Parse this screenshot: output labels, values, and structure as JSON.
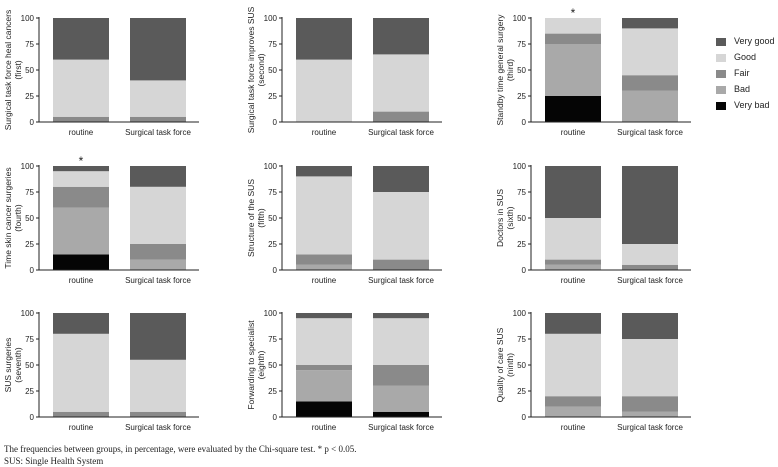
{
  "legend": [
    {
      "label": "Very good",
      "color": "#5a5a5a"
    },
    {
      "label": "Good",
      "color": "#d6d6d6"
    },
    {
      "label": "Fair",
      "color": "#8a8a8a"
    },
    {
      "label": "Bad",
      "color": "#a9a9a9"
    },
    {
      "label": "Very bad",
      "color": "#050505"
    }
  ],
  "caption": {
    "line1": "The frequencies between groups, in percentage, were evaluated by the Chi-square test. * p < 0.05.",
    "line2": "SUS: Single Health System"
  },
  "chart_data": [
    {
      "type": "bar",
      "stacked": true,
      "ylabel": "Surgical task force heal cancers (first)",
      "categories": [
        "routine",
        "Surgical task force"
      ],
      "ylim": [
        0,
        100
      ],
      "yticks": [
        0,
        25,
        50,
        75,
        100
      ],
      "annotations": [],
      "series": [
        {
          "name": "Very bad",
          "values": [
            0,
            0
          ]
        },
        {
          "name": "Bad",
          "values": [
            0,
            0
          ]
        },
        {
          "name": "Fair",
          "values": [
            5,
            5
          ]
        },
        {
          "name": "Good",
          "values": [
            55,
            35
          ]
        },
        {
          "name": "Very good",
          "values": [
            40,
            60
          ]
        }
      ]
    },
    {
      "type": "bar",
      "stacked": true,
      "ylabel": "Surgical task force improves SUS (second)",
      "categories": [
        "routine",
        "Surgical task force"
      ],
      "ylim": [
        0,
        100
      ],
      "yticks": [
        0,
        25,
        50,
        75,
        100
      ],
      "annotations": [],
      "series": [
        {
          "name": "Very bad",
          "values": [
            0,
            0
          ]
        },
        {
          "name": "Bad",
          "values": [
            0,
            0
          ]
        },
        {
          "name": "Fair",
          "values": [
            0,
            10
          ]
        },
        {
          "name": "Good",
          "values": [
            60,
            55
          ]
        },
        {
          "name": "Very good",
          "values": [
            40,
            35
          ]
        }
      ]
    },
    {
      "type": "bar",
      "stacked": true,
      "ylabel": "Standby time general surgery (third)",
      "categories": [
        "routine",
        "Surgical task force"
      ],
      "ylim": [
        0,
        100
      ],
      "yticks": [
        0,
        25,
        50,
        75,
        100
      ],
      "annotations": [
        {
          "category": "routine",
          "text": "*"
        }
      ],
      "series": [
        {
          "name": "Very bad",
          "values": [
            25,
            0
          ]
        },
        {
          "name": "Bad",
          "values": [
            50,
            30
          ]
        },
        {
          "name": "Fair",
          "values": [
            10,
            15
          ]
        },
        {
          "name": "Good",
          "values": [
            15,
            45
          ]
        },
        {
          "name": "Very good",
          "values": [
            0,
            10
          ]
        }
      ]
    },
    {
      "type": "bar",
      "stacked": true,
      "ylabel": "Time skin cancer surgeries (fourth)",
      "categories": [
        "routine",
        "Surgical task force"
      ],
      "ylim": [
        0,
        100
      ],
      "yticks": [
        0,
        25,
        50,
        75,
        100
      ],
      "annotations": [
        {
          "category": "routine",
          "text": "*"
        }
      ],
      "series": [
        {
          "name": "Very bad",
          "values": [
            15,
            0
          ]
        },
        {
          "name": "Bad",
          "values": [
            45,
            10
          ]
        },
        {
          "name": "Fair",
          "values": [
            20,
            15
          ]
        },
        {
          "name": "Good",
          "values": [
            15,
            55
          ]
        },
        {
          "name": "Very good",
          "values": [
            5,
            20
          ]
        }
      ]
    },
    {
      "type": "bar",
      "stacked": true,
      "ylabel": "Structure of the SUS (fifth)",
      "categories": [
        "routine",
        "Surgical task force"
      ],
      "ylim": [
        0,
        100
      ],
      "yticks": [
        0,
        25,
        50,
        75,
        100
      ],
      "annotations": [],
      "series": [
        {
          "name": "Very bad",
          "values": [
            0,
            0
          ]
        },
        {
          "name": "Bad",
          "values": [
            5,
            0
          ]
        },
        {
          "name": "Fair",
          "values": [
            10,
            10
          ]
        },
        {
          "name": "Good",
          "values": [
            75,
            65
          ]
        },
        {
          "name": "Very good",
          "values": [
            10,
            25
          ]
        }
      ]
    },
    {
      "type": "bar",
      "stacked": true,
      "ylabel": "Doctors in SUS (sixth)",
      "categories": [
        "routine",
        "Surgical task force"
      ],
      "ylim": [
        0,
        100
      ],
      "yticks": [
        0,
        25,
        50,
        75,
        100
      ],
      "annotations": [],
      "series": [
        {
          "name": "Very bad",
          "values": [
            0,
            0
          ]
        },
        {
          "name": "Bad",
          "values": [
            5,
            0
          ]
        },
        {
          "name": "Fair",
          "values": [
            5,
            5
          ]
        },
        {
          "name": "Good",
          "values": [
            40,
            20
          ]
        },
        {
          "name": "Very good",
          "values": [
            50,
            75
          ]
        }
      ]
    },
    {
      "type": "bar",
      "stacked": true,
      "ylabel": "SUS surgeries (seventh)",
      "categories": [
        "routine",
        "Surgical task force"
      ],
      "ylim": [
        0,
        100
      ],
      "yticks": [
        0,
        25,
        50,
        75,
        100
      ],
      "annotations": [],
      "series": [
        {
          "name": "Very bad",
          "values": [
            0,
            0
          ]
        },
        {
          "name": "Bad",
          "values": [
            0,
            0
          ]
        },
        {
          "name": "Fair",
          "values": [
            5,
            5
          ]
        },
        {
          "name": "Good",
          "values": [
            75,
            50
          ]
        },
        {
          "name": "Very good",
          "values": [
            20,
            45
          ]
        }
      ]
    },
    {
      "type": "bar",
      "stacked": true,
      "ylabel": "Forwarding to specialist (eighth)",
      "categories": [
        "routine",
        "Surgical task force"
      ],
      "ylim": [
        0,
        100
      ],
      "yticks": [
        0,
        25,
        50,
        75,
        100
      ],
      "annotations": [],
      "series": [
        {
          "name": "Very bad",
          "values": [
            15,
            5
          ]
        },
        {
          "name": "Bad",
          "values": [
            30,
            25
          ]
        },
        {
          "name": "Fair",
          "values": [
            5,
            20
          ]
        },
        {
          "name": "Good",
          "values": [
            45,
            45
          ]
        },
        {
          "name": "Very good",
          "values": [
            5,
            5
          ]
        }
      ]
    },
    {
      "type": "bar",
      "stacked": true,
      "ylabel": "Quality of care SUS (ninth)",
      "categories": [
        "routine",
        "Surgical task force"
      ],
      "ylim": [
        0,
        100
      ],
      "yticks": [
        0,
        25,
        50,
        75,
        100
      ],
      "annotations": [],
      "series": [
        {
          "name": "Very bad",
          "values": [
            0,
            0
          ]
        },
        {
          "name": "Bad",
          "values": [
            10,
            5
          ]
        },
        {
          "name": "Fair",
          "values": [
            10,
            15
          ]
        },
        {
          "name": "Good",
          "values": [
            60,
            55
          ]
        },
        {
          "name": "Very good",
          "values": [
            20,
            25
          ]
        }
      ]
    }
  ]
}
